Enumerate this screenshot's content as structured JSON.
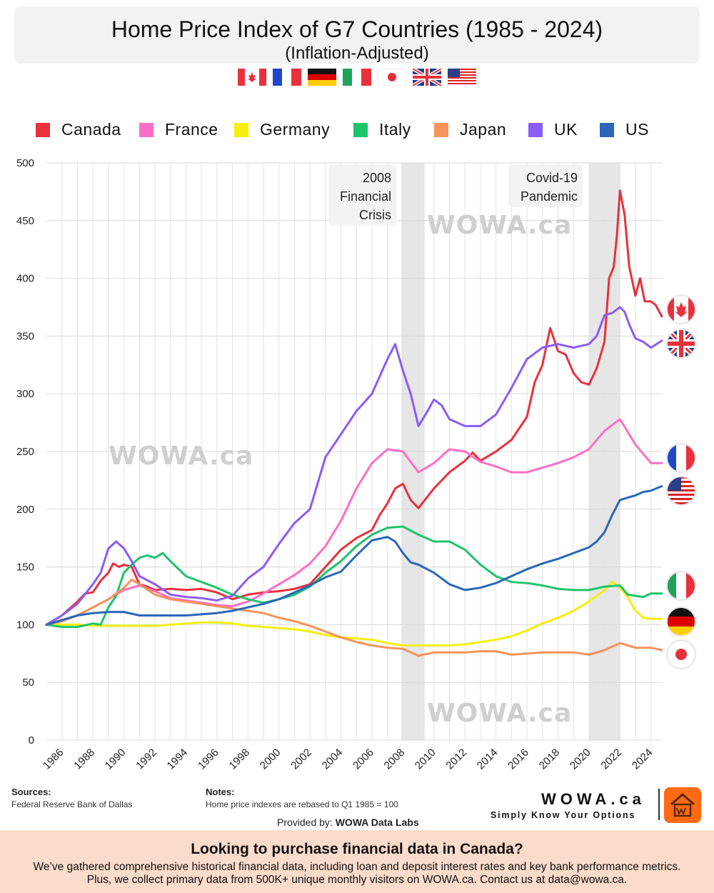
{
  "title": "Home Price Index of G7 Countries (1985 - 2024)",
  "subtitle": "(Inflation-Adjusted)",
  "header_flags": [
    "flag-canada-icon",
    "flag-france-icon",
    "flag-germany-icon",
    "flag-italy-icon",
    "flag-japan-icon",
    "flag-uk-icon",
    "flag-us-icon"
  ],
  "chart_data": {
    "type": "line",
    "title": "Home Price Index of G7 Countries (1985 - 2024)",
    "subtitle": "(Inflation-Adjusted)",
    "xlabel": "",
    "ylabel": "",
    "xlim": [
      1985,
      2024.75
    ],
    "ylim": [
      0,
      500
    ],
    "yticks": [
      0,
      50,
      100,
      150,
      200,
      250,
      300,
      350,
      400,
      450,
      500
    ],
    "xticks": [
      1986,
      1988,
      1990,
      1992,
      1994,
      1996,
      1998,
      2000,
      2002,
      2004,
      2006,
      2008,
      2010,
      2012,
      2014,
      2016,
      2018,
      2020,
      2022,
      2024
    ],
    "grid": true,
    "legend_position": "top",
    "shaded_periods": [
      {
        "label": "2008\nFinancial\nCrisis",
        "start": 2007.9,
        "end": 2009.4
      },
      {
        "label": "Covid-19\nPandemic",
        "start": 2020.0,
        "end": 2022.0
      }
    ],
    "series": [
      {
        "name": "Canada",
        "color": "#e8313c",
        "x": [
          1985,
          1986,
          1987,
          1987.5,
          1988,
          1988.5,
          1989,
          1989.3,
          1989.7,
          1990,
          1990.5,
          1991,
          1991.5,
          1992,
          1993,
          1994,
          1995,
          1996,
          1997,
          1998,
          1999,
          2000,
          2001,
          2002,
          2003,
          2004,
          2005,
          2006,
          2006.5,
          2007,
          2007.5,
          2008,
          2008.5,
          2009,
          2010,
          2011,
          2012,
          2012.5,
          2013,
          2014,
          2015,
          2016,
          2016.5,
          2017,
          2017.5,
          2018,
          2018.5,
          2019,
          2019.5,
          2020,
          2020.5,
          2021,
          2021.3,
          2021.6,
          2021.8,
          2022,
          2022.3,
          2022.6,
          2023,
          2023.3,
          2023.6,
          2024,
          2024.3,
          2024.7
        ],
        "values": [
          100,
          108,
          120,
          127,
          128,
          138,
          145,
          153,
          150,
          152,
          150,
          135,
          133,
          130,
          131,
          130,
          131,
          128,
          122,
          126,
          128,
          129,
          131,
          135,
          150,
          165,
          175,
          182,
          195,
          205,
          218,
          222,
          208,
          201,
          218,
          232,
          242,
          249,
          242,
          250,
          260,
          280,
          310,
          325,
          357,
          337,
          334,
          318,
          310,
          308,
          322,
          345,
          400,
          410,
          437,
          476,
          455,
          410,
          385,
          400,
          380,
          380,
          377,
          367
        ]
      },
      {
        "name": "France",
        "color": "#ff6ec7",
        "x": [
          1985,
          1986,
          1987,
          1988,
          1989,
          1990,
          1991,
          1992,
          1993,
          1994,
          1995,
          1996,
          1997,
          1998,
          1999,
          2000,
          2001,
          2002,
          2003,
          2004,
          2005,
          2006,
          2007,
          2008,
          2009,
          2010,
          2011,
          2012,
          2013,
          2014,
          2015,
          2016,
          2017,
          2018,
          2019,
          2020,
          2021,
          2022,
          2023,
          2024,
          2024.7
        ],
        "values": [
          100,
          103,
          108,
          115,
          122,
          130,
          134,
          129,
          123,
          121,
          119,
          117,
          116,
          120,
          127,
          135,
          143,
          153,
          168,
          190,
          218,
          240,
          252,
          250,
          232,
          240,
          252,
          250,
          241,
          237,
          232,
          232,
          236,
          240,
          245,
          252,
          268,
          278,
          256,
          240,
          240
        ]
      },
      {
        "name": "Germany",
        "color": "#f6ee0c",
        "x": [
          1985,
          1986,
          1987,
          1988,
          1989,
          1990,
          1991,
          1992,
          1993,
          1994,
          1995,
          1996,
          1997,
          1998,
          1999,
          2000,
          2001,
          2002,
          2003,
          2004,
          2005,
          2006,
          2007,
          2008,
          2009,
          2010,
          2011,
          2012,
          2013,
          2014,
          2015,
          2016,
          2017,
          2018,
          2019,
          2020,
          2021,
          2021.5,
          2022,
          2022.5,
          2023,
          2023.5,
          2024,
          2024.7
        ],
        "values": [
          100,
          100,
          100,
          99,
          99,
          99,
          99,
          99,
          100,
          101,
          102,
          102,
          101,
          99,
          98,
          97,
          96,
          94,
          91,
          89,
          88,
          87,
          84,
          82,
          82,
          82,
          82,
          83,
          85,
          87,
          90,
          95,
          101,
          106,
          112,
          120,
          130,
          137,
          132,
          124,
          112,
          106,
          105,
          105
        ]
      },
      {
        "name": "Italy",
        "color": "#1ec46a",
        "x": [
          1985,
          1986,
          1987,
          1988,
          1988.5,
          1989,
          1989.5,
          1990,
          1990.5,
          1991,
          1991.5,
          1992,
          1992.5,
          1993,
          1994,
          1995,
          1996,
          1997,
          1998,
          1999,
          2000,
          2001,
          2002,
          2003,
          2004,
          2005,
          2006,
          2007,
          2008,
          2009,
          2010,
          2011,
          2012,
          2013,
          2014,
          2015,
          2016,
          2017,
          2018,
          2019,
          2020,
          2021,
          2022,
          2022.5,
          2023,
          2023.5,
          2024,
          2024.7
        ],
        "values": [
          100,
          98,
          98,
          101,
          100,
          115,
          125,
          145,
          152,
          158,
          160,
          158,
          162,
          155,
          142,
          137,
          132,
          126,
          122,
          119,
          122,
          126,
          133,
          145,
          155,
          168,
          178,
          184,
          185,
          178,
          172,
          172,
          165,
          152,
          142,
          137,
          136,
          134,
          131,
          130,
          130,
          133,
          134,
          126,
          125,
          124,
          127,
          127
        ]
      },
      {
        "name": "Japan",
        "color": "#f7935a",
        "x": [
          1985,
          1986,
          1987,
          1988,
          1989,
          1990,
          1990.5,
          1991,
          1992,
          1993,
          1994,
          1995,
          1996,
          1997,
          1998,
          1999,
          2000,
          2001,
          2002,
          2003,
          2004,
          2005,
          2006,
          2007,
          2008,
          2009,
          2010,
          2011,
          2012,
          2013,
          2014,
          2015,
          2016,
          2017,
          2018,
          2019,
          2020,
          2021,
          2022,
          2022.5,
          2023,
          2024,
          2024.7
        ],
        "values": [
          100,
          103,
          108,
          115,
          122,
          132,
          139,
          135,
          126,
          122,
          120,
          118,
          116,
          114,
          112,
          110,
          106,
          103,
          99,
          94,
          89,
          85,
          82,
          80,
          79,
          73,
          76,
          76,
          76,
          77,
          77,
          74,
          75,
          76,
          76,
          76,
          74,
          78,
          84,
          82,
          80,
          80,
          78
        ]
      },
      {
        "name": "UK",
        "color": "#8b5cf6",
        "x": [
          1985,
          1986,
          1987,
          1988,
          1988.5,
          1989,
          1989.5,
          1990,
          1990.5,
          1991,
          1992,
          1993,
          1994,
          1995,
          1996,
          1997,
          1998,
          1999,
          2000,
          2001,
          2002,
          2003,
          2004,
          2005,
          2006,
          2007,
          2007.5,
          2008,
          2008.5,
          2009,
          2009.5,
          2010,
          2010.5,
          2011,
          2012,
          2013,
          2014,
          2015,
          2016,
          2017,
          2018,
          2019,
          2020,
          2020.5,
          2021,
          2021.5,
          2022,
          2022.3,
          2022.6,
          2023,
          2023.5,
          2024,
          2024.7
        ],
        "values": [
          100,
          108,
          118,
          135,
          145,
          166,
          172,
          166,
          155,
          142,
          135,
          126,
          124,
          123,
          121,
          125,
          140,
          150,
          170,
          188,
          200,
          245,
          265,
          285,
          300,
          330,
          343,
          320,
          300,
          272,
          283,
          295,
          290,
          278,
          272,
          272,
          282,
          305,
          330,
          340,
          343,
          340,
          343,
          350,
          368,
          370,
          375,
          371,
          360,
          348,
          345,
          340,
          346
        ]
      },
      {
        "name": "US",
        "color": "#2a67b8",
        "x": [
          1985,
          1986,
          1987,
          1988,
          1989,
          1990,
          1991,
          1992,
          1993,
          1994,
          1995,
          1996,
          1997,
          1998,
          1999,
          2000,
          2001,
          2002,
          2003,
          2004,
          2005,
          2006,
          2007,
          2007.5,
          2008,
          2008.5,
          2009,
          2010,
          2011,
          2012,
          2013,
          2014,
          2015,
          2016,
          2017,
          2018,
          2019,
          2020,
          2020.5,
          2021,
          2021.5,
          2022,
          2022.5,
          2023,
          2023.5,
          2024,
          2024.7
        ],
        "values": [
          100,
          104,
          108,
          110,
          111,
          111,
          108,
          108,
          108,
          108,
          109,
          110,
          112,
          115,
          118,
          122,
          128,
          134,
          141,
          146,
          160,
          173,
          176,
          172,
          162,
          154,
          152,
          145,
          135,
          130,
          132,
          136,
          142,
          148,
          153,
          157,
          162,
          167,
          172,
          180,
          195,
          208,
          210,
          212,
          215,
          216,
          220
        ]
      }
    ]
  },
  "annotations": {
    "crisis": [
      "2008",
      "Financial",
      "Crisis"
    ],
    "covid": [
      "Covid-19",
      "Pandemic"
    ]
  },
  "watermarks": [
    "WOWA.ca",
    "WOWA.ca",
    "WOWA.ca"
  ],
  "end_flags": [
    {
      "country": "Canada",
      "icon": "flag-canada-icon",
      "y": 433
    },
    {
      "country": "UK",
      "icon": "flag-uk-icon",
      "y": 481
    },
    {
      "country": "France",
      "icon": "flag-france-icon",
      "y": 641
    },
    {
      "country": "US",
      "icon": "flag-us-icon",
      "y": 687
    },
    {
      "country": "Italy",
      "icon": "flag-italy-icon",
      "y": 820
    },
    {
      "country": "Germany",
      "icon": "flag-germany-icon",
      "y": 870
    },
    {
      "country": "Japan",
      "icon": "flag-japan-icon",
      "y": 916
    }
  ],
  "sources": {
    "heading": "Sources:",
    "text": "Federal Reserve Bank of Dallas"
  },
  "notes": {
    "heading": "Notes:",
    "text": "Home price indexes are rebased to  Q1 1985 = 100"
  },
  "provided_by": {
    "prefix": "Provided by: ",
    "name": "WOWA Data Labs"
  },
  "brand": {
    "name": "WOWA.ca",
    "slogan": "Simply Know Your Options"
  },
  "footer": {
    "heading": "Looking to purchase financial data in Canada?",
    "text": "We’ve gathered comprehensive historical financial data, including loan and deposit interest rates and key bank performance metrics. Plus, we collect primary data from 500K+ unique monthly visitors on WOWA.ca.  Contact us at data@wowa.ca."
  }
}
